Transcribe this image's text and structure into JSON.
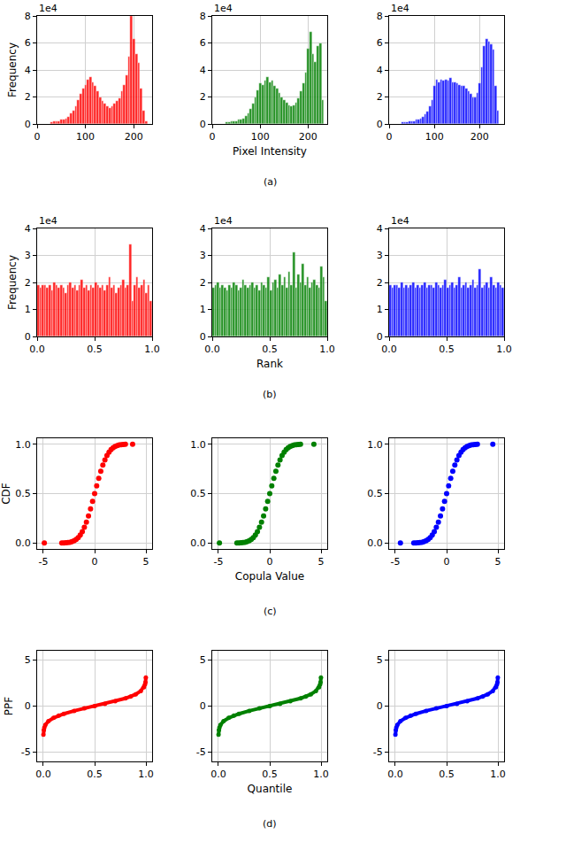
{
  "chart_data": [
    {
      "type": "histogram",
      "color": "red",
      "ylabel": "Frequency",
      "offset_label": "1e4",
      "grid": true,
      "bins": [
        28,
        33,
        38,
        43,
        48,
        53,
        58,
        63,
        68,
        73,
        78,
        83,
        88,
        93,
        98,
        103,
        108,
        113,
        118,
        123,
        128,
        133,
        138,
        143,
        148,
        153,
        158,
        163,
        168,
        173,
        178,
        183,
        188,
        193,
        198,
        203,
        208,
        213,
        218,
        223,
        228
      ],
      "values": [
        0.1,
        0.2,
        0.2,
        0.2,
        0.3,
        0.3,
        0.4,
        0.5,
        0.8,
        1.0,
        1.3,
        1.8,
        2.2,
        2.6,
        2.9,
        3.3,
        3.5,
        3.1,
        2.8,
        2.4,
        2.0,
        1.7,
        1.5,
        1.3,
        1.2,
        1.3,
        1.5,
        1.7,
        1.9,
        2.4,
        2.9,
        3.6,
        5.0,
        8.0,
        6.3,
        5.2,
        4.5,
        2.6,
        1.0,
        0.2
      ],
      "xlim": [
        0,
        238
      ],
      "xticks": [
        0,
        100,
        200
      ],
      "ylim": [
        0,
        8
      ],
      "yticks": [
        0,
        2,
        4,
        6,
        8
      ]
    },
    {
      "type": "histogram",
      "color": "green",
      "xlabel": "Pixel Intensity",
      "caption": "(a)",
      "offset_label": "1e4",
      "grid": true,
      "bins": [
        28,
        33,
        38,
        43,
        48,
        53,
        58,
        63,
        68,
        73,
        78,
        83,
        88,
        93,
        98,
        103,
        108,
        113,
        118,
        123,
        128,
        133,
        138,
        143,
        148,
        153,
        158,
        163,
        168,
        173,
        178,
        183,
        188,
        193,
        198,
        203,
        208,
        213,
        218,
        223,
        228,
        233
      ],
      "values": [
        0.1,
        0.1,
        0.2,
        0.2,
        0.2,
        0.3,
        0.3,
        0.4,
        0.6,
        0.8,
        1.1,
        1.5,
        2.0,
        2.5,
        3.0,
        2.9,
        3.2,
        3.5,
        3.1,
        3.2,
        2.8,
        2.6,
        2.3,
        2.0,
        1.8,
        1.6,
        1.4,
        1.3,
        1.4,
        1.6,
        1.9,
        2.4,
        3.0,
        3.8,
        5.6,
        6.8,
        5.2,
        4.6,
        5.8,
        6.0,
        1.8
      ],
      "xlim": [
        0,
        240
      ],
      "xticks": [
        0,
        100,
        200
      ],
      "ylim": [
        0,
        8
      ],
      "yticks": [
        0,
        2,
        4,
        6,
        8
      ]
    },
    {
      "type": "histogram",
      "color": "blue",
      "offset_label": "1e4",
      "grid": true,
      "bins": [
        28,
        33,
        38,
        43,
        48,
        53,
        58,
        63,
        68,
        73,
        78,
        83,
        88,
        93,
        98,
        103,
        108,
        113,
        118,
        123,
        128,
        133,
        138,
        143,
        148,
        153,
        158,
        163,
        168,
        173,
        178,
        183,
        188,
        193,
        198,
        203,
        208,
        213,
        218,
        223,
        228,
        233,
        238,
        243
      ],
      "values": [
        0.1,
        0.1,
        0.1,
        0.2,
        0.2,
        0.2,
        0.3,
        0.3,
        0.4,
        0.5,
        0.7,
        0.9,
        1.3,
        1.8,
        2.8,
        3.3,
        3.1,
        3.3,
        3.2,
        3.3,
        3.2,
        3.4,
        3.1,
        3.1,
        3.0,
        2.9,
        2.8,
        2.8,
        2.6,
        2.4,
        2.2,
        2.0,
        2.0,
        2.3,
        3.0,
        4.2,
        5.8,
        6.3,
        6.1,
        5.9,
        5.5,
        2.8,
        1.0
      ],
      "xlim": [
        0,
        254
      ],
      "xticks": [
        0,
        100,
        200
      ],
      "ylim": [
        0,
        8
      ],
      "yticks": [
        0,
        2,
        4,
        6,
        8
      ]
    },
    {
      "type": "histogram",
      "color": "red",
      "ylabel": "Frequency",
      "offset_label": "1e4",
      "grid": true,
      "bins": [
        0,
        0.02,
        0.04,
        0.06,
        0.08,
        0.1,
        0.12,
        0.14,
        0.16,
        0.18,
        0.2,
        0.22,
        0.24,
        0.26,
        0.28,
        0.3,
        0.32,
        0.34,
        0.36,
        0.38,
        0.4,
        0.42,
        0.44,
        0.46,
        0.48,
        0.5,
        0.52,
        0.54,
        0.56,
        0.58,
        0.6,
        0.62,
        0.64,
        0.66,
        0.68,
        0.7,
        0.72,
        0.74,
        0.76,
        0.78,
        0.8,
        0.82,
        0.84,
        0.86,
        0.88,
        0.9,
        0.92,
        0.94,
        0.96,
        0.98,
        1
      ],
      "values": [
        1.9,
        1.8,
        1.9,
        1.9,
        1.8,
        1.9,
        1.7,
        2.0,
        1.9,
        1.8,
        1.9,
        1.8,
        1.6,
        1.9,
        2.0,
        1.8,
        1.9,
        1.7,
        1.9,
        2.1,
        1.8,
        1.9,
        1.7,
        1.9,
        1.8,
        2.0,
        1.9,
        1.8,
        1.9,
        1.7,
        1.9,
        2.2,
        1.8,
        1.9,
        1.6,
        1.8,
        1.9,
        2.1,
        1.8,
        1.9,
        3.4,
        1.3,
        1.9,
        2.2,
        1.8,
        1.9,
        2.1,
        1.6,
        1.9,
        1.3
      ],
      "xlim": [
        0,
        1
      ],
      "xticks": [
        {
          "value": 0,
          "label": "0.0"
        },
        {
          "value": 0.5,
          "label": "0.5"
        },
        {
          "value": 1,
          "label": "1.0"
        }
      ],
      "ylim": [
        0,
        4
      ],
      "yticks": [
        0,
        1,
        2,
        3,
        4
      ]
    },
    {
      "type": "histogram",
      "color": "green",
      "xlabel": "Rank",
      "caption": "(b)",
      "offset_label": "1e4",
      "grid": true,
      "bins": [
        0,
        0.02,
        0.04,
        0.06,
        0.08,
        0.1,
        0.12,
        0.14,
        0.16,
        0.18,
        0.2,
        0.22,
        0.24,
        0.26,
        0.28,
        0.3,
        0.32,
        0.34,
        0.36,
        0.38,
        0.4,
        0.42,
        0.44,
        0.46,
        0.48,
        0.5,
        0.52,
        0.54,
        0.56,
        0.58,
        0.6,
        0.62,
        0.64,
        0.66,
        0.68,
        0.7,
        0.72,
        0.74,
        0.76,
        0.78,
        0.8,
        0.82,
        0.84,
        0.86,
        0.88,
        0.9,
        0.92,
        0.94,
        0.96,
        0.98,
        1
      ],
      "values": [
        1.8,
        1.9,
        2.0,
        1.8,
        1.9,
        1.8,
        1.7,
        1.9,
        1.8,
        2.0,
        1.9,
        1.7,
        1.8,
        2.1,
        1.9,
        1.8,
        1.9,
        2.0,
        1.8,
        1.9,
        1.7,
        2.0,
        1.9,
        1.8,
        2.2,
        1.7,
        2.0,
        2.1,
        1.8,
        2.3,
        1.9,
        2.2,
        1.8,
        2.4,
        1.9,
        3.1,
        1.8,
        2.3,
        2.0,
        2.7,
        1.9,
        2.2,
        1.8,
        2.0,
        2.1,
        1.9,
        1.8,
        2.6,
        2.2,
        1.3
      ],
      "xlim": [
        0,
        1
      ],
      "xticks": [
        {
          "value": 0,
          "label": "0.0"
        },
        {
          "value": 0.5,
          "label": "0.5"
        },
        {
          "value": 1,
          "label": "1.0"
        }
      ],
      "ylim": [
        0,
        4
      ],
      "yticks": [
        0,
        1,
        2,
        3,
        4
      ]
    },
    {
      "type": "histogram",
      "color": "blue",
      "offset_label": "1e4",
      "grid": true,
      "bins": [
        0,
        0.02,
        0.04,
        0.06,
        0.08,
        0.1,
        0.12,
        0.14,
        0.16,
        0.18,
        0.2,
        0.22,
        0.24,
        0.26,
        0.28,
        0.3,
        0.32,
        0.34,
        0.36,
        0.38,
        0.4,
        0.42,
        0.44,
        0.46,
        0.48,
        0.5,
        0.52,
        0.54,
        0.56,
        0.58,
        0.6,
        0.62,
        0.64,
        0.66,
        0.68,
        0.7,
        0.72,
        0.74,
        0.76,
        0.78,
        0.8,
        0.82,
        0.84,
        0.86,
        0.88,
        0.9,
        0.92,
        0.94,
        0.96,
        0.98,
        1
      ],
      "values": [
        1.9,
        1.8,
        1.9,
        1.9,
        1.8,
        2.0,
        1.8,
        1.9,
        1.8,
        1.9,
        2.0,
        1.8,
        1.9,
        1.8,
        1.9,
        2.0,
        1.8,
        1.9,
        1.9,
        1.8,
        2.0,
        1.9,
        1.8,
        1.9,
        2.1,
        1.8,
        1.9,
        2.0,
        1.8,
        1.9,
        2.2,
        1.8,
        1.9,
        2.0,
        1.8,
        1.9,
        2.1,
        1.8,
        1.9,
        2.5,
        1.8,
        1.9,
        2.0,
        1.8,
        2.2,
        1.9,
        1.8,
        2.0,
        1.9,
        1.8
      ],
      "xlim": [
        0,
        1
      ],
      "xticks": [
        {
          "value": 0,
          "label": "0.0"
        },
        {
          "value": 0.5,
          "label": "0.5"
        },
        {
          "value": 1,
          "label": "1.0"
        }
      ],
      "ylim": [
        0,
        4
      ],
      "yticks": [
        0,
        1,
        2,
        3,
        4
      ]
    },
    {
      "type": "scatter",
      "color": "red",
      "marker": "circle",
      "ylabel": "CDF",
      "grid": true,
      "x": [
        -4.9,
        -3.2,
        -3.0,
        -2.8,
        -2.6,
        -2.4,
        -2.2,
        -2.0,
        -1.8,
        -1.6,
        -1.4,
        -1.2,
        -1.0,
        -0.8,
        -0.6,
        -0.4,
        -0.2,
        0,
        0.2,
        0.4,
        0.6,
        0.8,
        1.0,
        1.2,
        1.4,
        1.6,
        1.8,
        2.0,
        2.2,
        2.4,
        2.6,
        2.8,
        3.0,
        3.7
      ],
      "values": [
        0.0,
        0.001,
        0.001,
        0.003,
        0.005,
        0.008,
        0.014,
        0.023,
        0.036,
        0.055,
        0.081,
        0.115,
        0.159,
        0.212,
        0.274,
        0.345,
        0.421,
        0.5,
        0.579,
        0.655,
        0.726,
        0.788,
        0.841,
        0.885,
        0.919,
        0.945,
        0.964,
        0.977,
        0.986,
        0.992,
        0.995,
        0.997,
        0.999,
        1.0
      ],
      "xlim": [
        -5.6,
        5.6
      ],
      "xticks": [
        -5,
        0,
        5
      ],
      "ylim": [
        -0.06,
        1.06
      ],
      "yticks": [
        {
          "value": 0,
          "label": "0.0"
        },
        {
          "value": 0.5,
          "label": "0.5"
        },
        {
          "value": 1,
          "label": "1.0"
        }
      ]
    },
    {
      "type": "scatter",
      "color": "green",
      "marker": "circle",
      "xlabel": "Copula Value",
      "caption": "(c)",
      "grid": true,
      "x": [
        -4.9,
        -3.2,
        -3.0,
        -2.8,
        -2.6,
        -2.4,
        -2.2,
        -2.0,
        -1.8,
        -1.6,
        -1.4,
        -1.2,
        -1.0,
        -0.8,
        -0.6,
        -0.4,
        -0.2,
        0,
        0.2,
        0.4,
        0.6,
        0.8,
        1.0,
        1.2,
        1.4,
        1.6,
        1.8,
        2.0,
        2.2,
        2.4,
        2.6,
        2.8,
        3.0,
        4.3
      ],
      "values": [
        0.0,
        0.001,
        0.001,
        0.003,
        0.005,
        0.008,
        0.014,
        0.023,
        0.036,
        0.055,
        0.081,
        0.115,
        0.159,
        0.212,
        0.274,
        0.345,
        0.421,
        0.5,
        0.579,
        0.655,
        0.726,
        0.788,
        0.841,
        0.885,
        0.919,
        0.945,
        0.964,
        0.977,
        0.986,
        0.992,
        0.995,
        0.997,
        0.999,
        1.0
      ],
      "xlim": [
        -5.6,
        5.6
      ],
      "xticks": [
        -5,
        0,
        5
      ],
      "ylim": [
        -0.06,
        1.06
      ],
      "yticks": [
        {
          "value": 0,
          "label": "0.0"
        },
        {
          "value": 0.5,
          "label": "0.5"
        },
        {
          "value": 1,
          "label": "1.0"
        }
      ]
    },
    {
      "type": "scatter",
      "color": "blue",
      "marker": "circle",
      "grid": true,
      "x": [
        -4.5,
        -3.2,
        -3.0,
        -2.8,
        -2.6,
        -2.4,
        -2.2,
        -2.0,
        -1.8,
        -1.6,
        -1.4,
        -1.2,
        -1.0,
        -0.8,
        -0.6,
        -0.4,
        -0.2,
        0,
        0.2,
        0.4,
        0.6,
        0.8,
        1.0,
        1.2,
        1.4,
        1.6,
        1.8,
        2.0,
        2.2,
        2.4,
        2.6,
        2.8,
        3.0,
        4.5
      ],
      "values": [
        0.0,
        0.001,
        0.001,
        0.003,
        0.005,
        0.008,
        0.014,
        0.023,
        0.036,
        0.055,
        0.081,
        0.115,
        0.159,
        0.212,
        0.274,
        0.345,
        0.421,
        0.5,
        0.579,
        0.655,
        0.726,
        0.788,
        0.841,
        0.885,
        0.919,
        0.945,
        0.964,
        0.977,
        0.986,
        0.992,
        0.995,
        0.997,
        0.999,
        1.0
      ],
      "xlim": [
        -5.6,
        5.6
      ],
      "xticks": [
        -5,
        0,
        5
      ],
      "ylim": [
        -0.06,
        1.06
      ],
      "yticks": [
        {
          "value": 0,
          "label": "0.0"
        },
        {
          "value": 0.5,
          "label": "0.5"
        },
        {
          "value": 1,
          "label": "1.0"
        }
      ]
    },
    {
      "type": "line",
      "color": "red",
      "marker": "circle",
      "ylabel": "PPF",
      "grid": true,
      "x": [
        0.001,
        0.005,
        0.01,
        0.02,
        0.05,
        0.1,
        0.15,
        0.2,
        0.3,
        0.4,
        0.5,
        0.6,
        0.7,
        0.8,
        0.85,
        0.9,
        0.95,
        0.98,
        0.99,
        0.995,
        0.999
      ],
      "values": [
        -3.09,
        -2.58,
        -2.33,
        -2.05,
        -1.64,
        -1.28,
        -1.04,
        -0.84,
        -0.52,
        -0.25,
        0,
        0.25,
        0.52,
        0.84,
        1.04,
        1.28,
        1.64,
        2.05,
        2.33,
        2.58,
        3.09
      ],
      "xlim": [
        -0.06,
        1.06
      ],
      "xticks": [
        {
          "value": 0,
          "label": "0.0"
        },
        {
          "value": 0.5,
          "label": "0.5"
        },
        {
          "value": 1,
          "label": "1.0"
        }
      ],
      "ylim": [
        -6,
        6
      ],
      "yticks": [
        -5,
        0,
        5
      ]
    },
    {
      "type": "line",
      "color": "green",
      "marker": "circle",
      "xlabel": "Quantile",
      "caption": "(d)",
      "grid": true,
      "x": [
        0.001,
        0.005,
        0.01,
        0.02,
        0.05,
        0.1,
        0.15,
        0.2,
        0.3,
        0.4,
        0.5,
        0.6,
        0.7,
        0.8,
        0.85,
        0.9,
        0.95,
        0.98,
        0.99,
        0.995,
        0.999
      ],
      "values": [
        -3.09,
        -2.58,
        -2.33,
        -2.05,
        -1.64,
        -1.28,
        -1.04,
        -0.84,
        -0.52,
        -0.25,
        0,
        0.25,
        0.52,
        0.84,
        1.04,
        1.28,
        1.64,
        2.05,
        2.33,
        2.58,
        3.09
      ],
      "xlim": [
        -0.06,
        1.06
      ],
      "xticks": [
        {
          "value": 0,
          "label": "0.0"
        },
        {
          "value": 0.5,
          "label": "0.5"
        },
        {
          "value": 1,
          "label": "1.0"
        }
      ],
      "ylim": [
        -6,
        6
      ],
      "yticks": [
        -5,
        0,
        5
      ]
    },
    {
      "type": "line",
      "color": "blue",
      "marker": "circle",
      "grid": true,
      "x": [
        0.001,
        0.005,
        0.01,
        0.02,
        0.05,
        0.1,
        0.15,
        0.2,
        0.3,
        0.4,
        0.5,
        0.6,
        0.7,
        0.8,
        0.85,
        0.9,
        0.95,
        0.98,
        0.99,
        0.995,
        0.999
      ],
      "values": [
        -3.09,
        -2.58,
        -2.33,
        -2.05,
        -1.64,
        -1.28,
        -1.04,
        -0.84,
        -0.52,
        -0.25,
        0,
        0.25,
        0.52,
        0.84,
        1.04,
        1.28,
        1.64,
        2.05,
        2.33,
        2.58,
        3.09
      ],
      "xlim": [
        -0.06,
        1.06
      ],
      "xticks": [
        {
          "value": 0,
          "label": "0.0"
        },
        {
          "value": 0.5,
          "label": "0.5"
        },
        {
          "value": 1,
          "label": "1.0"
        }
      ],
      "ylim": [
        -6,
        6
      ],
      "yticks": [
        -5,
        0,
        5
      ]
    }
  ]
}
